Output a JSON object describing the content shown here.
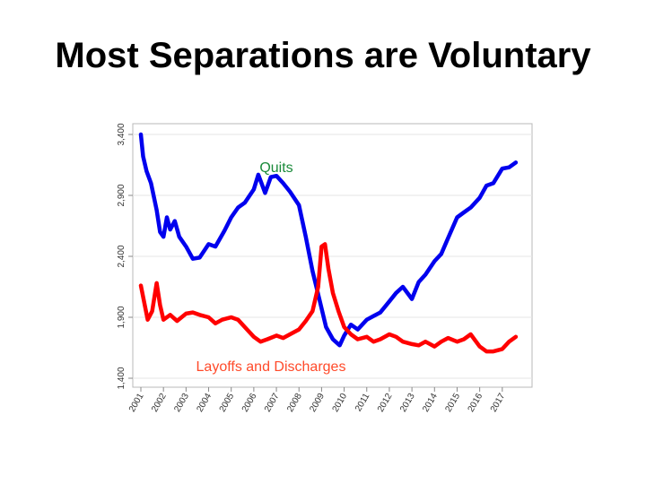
{
  "slide": {
    "title": "Most Separations are Voluntary"
  },
  "chart_data": {
    "type": "line",
    "title": "",
    "xlabel": "",
    "ylabel": "",
    "ylim": [
      1400,
      3400
    ],
    "y_ticks": [
      1400,
      1900,
      2400,
      2900,
      3400
    ],
    "y_tick_labels": [
      "1,400",
      "1,900",
      "2,400",
      "2,900",
      "3,400"
    ],
    "xlim": [
      2001,
      2018
    ],
    "x_ticks": [
      2001,
      2002,
      2003,
      2004,
      2005,
      2006,
      2007,
      2008,
      2009,
      2010,
      2011,
      2012,
      2013,
      2014,
      2015,
      2016,
      2017
    ],
    "x_tick_labels": [
      "2001",
      "2002",
      "2003",
      "2004",
      "2005",
      "2006",
      "2007",
      "2008",
      "2009",
      "2010",
      "2011",
      "2012",
      "2013",
      "2014",
      "2015",
      "2016",
      "2017"
    ],
    "grid": true,
    "legend": "inline labels",
    "series": [
      {
        "name": "Quits",
        "color": "#0000ee",
        "x": [
          2001.0,
          2001.1,
          2001.25,
          2001.45,
          2001.7,
          2001.85,
          2002.0,
          2002.15,
          2002.3,
          2002.5,
          2002.7,
          2003.0,
          2003.3,
          2003.6,
          2004.0,
          2004.3,
          2004.7,
          2005.0,
          2005.3,
          2005.6,
          2006.0,
          2006.2,
          2006.5,
          2006.75,
          2007.0,
          2007.3,
          2007.6,
          2008.0,
          2008.3,
          2008.6,
          2008.9,
          2009.2,
          2009.5,
          2009.8,
          2010.0,
          2010.3,
          2010.6,
          2011.0,
          2011.3,
          2011.6,
          2012.0,
          2012.3,
          2012.6,
          2013.0,
          2013.3,
          2013.6,
          2014.0,
          2014.3,
          2014.6,
          2015.0,
          2015.3,
          2015.6,
          2016.0,
          2016.3,
          2016.6,
          2017.0,
          2017.3,
          2017.6
        ],
        "y": [
          3400,
          3220,
          3100,
          3000,
          2780,
          2600,
          2560,
          2720,
          2620,
          2690,
          2560,
          2480,
          2380,
          2390,
          2500,
          2480,
          2610,
          2720,
          2800,
          2840,
          2950,
          3070,
          2920,
          3050,
          3060,
          3000,
          2930,
          2820,
          2560,
          2280,
          2050,
          1820,
          1720,
          1670,
          1750,
          1840,
          1800,
          1880,
          1910,
          1940,
          2030,
          2100,
          2150,
          2050,
          2190,
          2250,
          2360,
          2420,
          2550,
          2720,
          2760,
          2800,
          2880,
          2980,
          3000,
          3120,
          3130,
          3170
        ]
      },
      {
        "name": "Layoffs and Discharges",
        "color": "#ff0000",
        "x": [
          2001.0,
          2001.15,
          2001.3,
          2001.5,
          2001.7,
          2001.85,
          2002.0,
          2002.3,
          2002.6,
          2003.0,
          2003.3,
          2003.6,
          2004.0,
          2004.3,
          2004.6,
          2005.0,
          2005.3,
          2005.6,
          2006.0,
          2006.3,
          2006.6,
          2007.0,
          2007.3,
          2007.6,
          2008.0,
          2008.3,
          2008.6,
          2008.85,
          2009.0,
          2009.15,
          2009.3,
          2009.5,
          2009.75,
          2010.0,
          2010.3,
          2010.6,
          2011.0,
          2011.3,
          2011.6,
          2012.0,
          2012.3,
          2012.6,
          2013.0,
          2013.3,
          2013.6,
          2014.0,
          2014.3,
          2014.6,
          2015.0,
          2015.3,
          2015.6,
          2016.0,
          2016.3,
          2016.6,
          2017.0,
          2017.3,
          2017.6
        ],
        "y": [
          2160,
          2020,
          1880,
          1950,
          2180,
          2000,
          1880,
          1920,
          1870,
          1930,
          1940,
          1920,
          1900,
          1850,
          1880,
          1900,
          1880,
          1820,
          1740,
          1700,
          1720,
          1750,
          1730,
          1760,
          1800,
          1870,
          1950,
          2150,
          2480,
          2500,
          2300,
          2100,
          1950,
          1820,
          1760,
          1720,
          1740,
          1700,
          1720,
          1760,
          1740,
          1700,
          1680,
          1670,
          1700,
          1660,
          1700,
          1730,
          1700,
          1720,
          1760,
          1660,
          1620,
          1620,
          1640,
          1700,
          1740
        ]
      }
    ]
  }
}
